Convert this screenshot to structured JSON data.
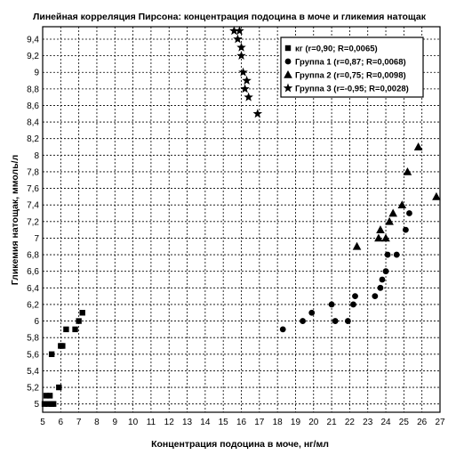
{
  "chart_data": {
    "type": "scatter",
    "title": "Линейная корреляция Пирсона: концентрация подоцина в моче и гликемия натощак",
    "xlabel": "Концентрация подоцина в моче, нг/мл",
    "ylabel": "Гликемия натощак, ммоль/л",
    "xlim": [
      5,
      27
    ],
    "ylim": [
      4.9,
      9.55
    ],
    "x_ticks": [
      "5",
      "6",
      "7",
      "8",
      "9",
      "10",
      "11",
      "12",
      "13",
      "14",
      "15",
      "16",
      "17",
      "18",
      "19",
      "20",
      "21",
      "22",
      "23",
      "24",
      "25",
      "26",
      "27"
    ],
    "y_ticks": [
      "5",
      "5,2",
      "5,4",
      "5,6",
      "5,8",
      "6",
      "6,2",
      "6,4",
      "6,6",
      "6,8",
      "7",
      "7,2",
      "7,4",
      "7,6",
      "7,8",
      "8",
      "8,2",
      "8,4",
      "8,6",
      "8,8",
      "9",
      "9,2",
      "9,4"
    ],
    "grid": true,
    "legend_position": "top-right",
    "series": [
      {
        "name": "кг (r=0,90; R=0,0065)",
        "marker": "square",
        "points": [
          [
            5.1,
            5.0
          ],
          [
            5.2,
            5.1
          ],
          [
            5.3,
            5.0
          ],
          [
            5.4,
            5.1
          ],
          [
            5.5,
            5.0
          ],
          [
            5.6,
            5.0
          ],
          [
            5.5,
            5.6
          ],
          [
            5.9,
            5.2
          ],
          [
            6.0,
            5.7
          ],
          [
            6.1,
            5.7
          ],
          [
            6.3,
            5.9
          ],
          [
            6.8,
            5.9
          ],
          [
            7.0,
            6.0
          ],
          [
            7.2,
            6.1
          ]
        ]
      },
      {
        "name": "Группа 1 (r=0,87; R=0,0068)",
        "marker": "circle",
        "points": [
          [
            18.3,
            5.9
          ],
          [
            19.4,
            6.0
          ],
          [
            19.9,
            6.1
          ],
          [
            21.0,
            6.2
          ],
          [
            21.2,
            6.0
          ],
          [
            21.9,
            6.0
          ],
          [
            22.2,
            6.2
          ],
          [
            22.3,
            6.3
          ],
          [
            23.4,
            6.3
          ],
          [
            23.7,
            6.4
          ],
          [
            23.8,
            6.5
          ],
          [
            24.0,
            6.6
          ],
          [
            24.1,
            6.8
          ],
          [
            24.6,
            6.8
          ],
          [
            25.1,
            7.1
          ],
          [
            25.3,
            7.3
          ]
        ]
      },
      {
        "name": "Группа 2 (r=0,75; R=0,0098)",
        "marker": "triangle",
        "points": [
          [
            22.4,
            6.9
          ],
          [
            23.6,
            7.0
          ],
          [
            23.7,
            7.1
          ],
          [
            24.0,
            7.0
          ],
          [
            24.2,
            7.2
          ],
          [
            24.4,
            7.3
          ],
          [
            24.9,
            7.4
          ],
          [
            25.2,
            7.8
          ],
          [
            25.8,
            8.1
          ],
          [
            26.8,
            7.5
          ]
        ]
      },
      {
        "name": "Группа 3 (r=-0,95; R=0,0028)",
        "marker": "star",
        "points": [
          [
            15.6,
            9.5
          ],
          [
            15.9,
            9.5
          ],
          [
            15.8,
            9.4
          ],
          [
            16.0,
            9.3
          ],
          [
            16.0,
            9.2
          ],
          [
            16.1,
            9.0
          ],
          [
            16.2,
            8.8
          ],
          [
            16.3,
            8.9
          ],
          [
            16.4,
            8.7
          ],
          [
            16.9,
            8.5
          ]
        ]
      }
    ]
  }
}
